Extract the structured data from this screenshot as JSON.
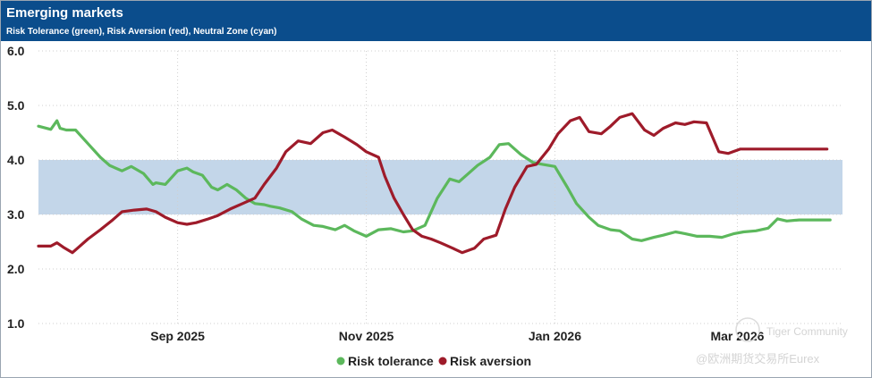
{
  "header": {
    "title": "Emerging markets",
    "subtitle": "Risk Tolerance (green), Risk Aversion (red), Neutral Zone (cyan)"
  },
  "watermark": {
    "line1": "Tiger Community",
    "line2": "@欧洲期货交易所Eurex"
  },
  "colors": {
    "header_bg": "#0b4d8c",
    "risk_tolerance": "#5cb85c",
    "risk_aversion": "#9e1b2a",
    "neutral_zone": "#c3d6e9",
    "grid": "#cfcfcf"
  },
  "chart_data": {
    "type": "line",
    "title": "Emerging markets",
    "subtitle": "Risk Tolerance (green), Risk Aversion (red), Neutral Zone (cyan)",
    "xlabel": "",
    "ylabel": "",
    "ylim": [
      1.0,
      6.0
    ],
    "yticks": [
      "6.0",
      "5.0",
      "4.0",
      "3.0",
      "2.0",
      "1.0"
    ],
    "ytick_values": [
      6,
      5,
      4,
      3,
      2,
      1
    ],
    "xticks": [
      "Sep 2025",
      "Nov 2025",
      "Jan 2026",
      "Mar 2026"
    ],
    "xtick_days": [
      45,
      106,
      167,
      226
    ],
    "xlim_days": [
      0,
      260
    ],
    "x_unit": "days since 2025-07-18",
    "neutral_zone": {
      "label": "Neutral Zone",
      "low": 3.0,
      "high": 4.0
    },
    "grid": true,
    "legend_position": "bottom-center",
    "series": [
      {
        "name": "Risk tolerance",
        "x": [
          0,
          4,
          6,
          7,
          9,
          12,
          16,
          20,
          23,
          27,
          30,
          34,
          37,
          38,
          41,
          45,
          48,
          50,
          53,
          56,
          58,
          61,
          64,
          67,
          70,
          73,
          75,
          78,
          82,
          85,
          89,
          92,
          96,
          99,
          102,
          106,
          110,
          114,
          118,
          121,
          125,
          129,
          133,
          136,
          140,
          142,
          146,
          149,
          152,
          156,
          160,
          163,
          167,
          171,
          174,
          178,
          181,
          185,
          188,
          192,
          195,
          199,
          202,
          206,
          209,
          213,
          217,
          221,
          225,
          228,
          232,
          236,
          239,
          242,
          246,
          250,
          253,
          256
        ],
        "values": [
          4.62,
          4.56,
          4.72,
          4.58,
          4.55,
          4.55,
          4.3,
          4.05,
          3.9,
          3.8,
          3.88,
          3.75,
          3.55,
          3.58,
          3.55,
          3.8,
          3.85,
          3.78,
          3.72,
          3.5,
          3.45,
          3.55,
          3.45,
          3.3,
          3.2,
          3.18,
          3.15,
          3.12,
          3.05,
          2.92,
          2.8,
          2.78,
          2.72,
          2.8,
          2.7,
          2.6,
          2.72,
          2.74,
          2.68,
          2.7,
          2.8,
          3.3,
          3.65,
          3.6,
          3.8,
          3.9,
          4.05,
          4.28,
          4.3,
          4.1,
          3.95,
          3.92,
          3.88,
          3.5,
          3.2,
          2.95,
          2.8,
          2.72,
          2.7,
          2.55,
          2.52,
          2.58,
          2.62,
          2.68,
          2.65,
          2.6,
          2.6,
          2.58,
          2.65,
          2.68,
          2.7,
          2.75,
          2.92,
          2.88,
          2.9,
          2.9,
          2.9,
          2.9
        ]
      },
      {
        "name": "Risk aversion",
        "x": [
          0,
          4,
          6,
          8,
          11,
          13,
          16,
          20,
          24,
          27,
          31,
          35,
          38,
          41,
          45,
          48,
          51,
          55,
          58,
          62,
          66,
          70,
          73,
          77,
          80,
          84,
          88,
          92,
          95,
          99,
          103,
          106,
          110,
          112,
          115,
          118,
          121,
          124,
          127,
          130,
          134,
          137,
          141,
          144,
          148,
          151,
          154,
          158,
          161,
          165,
          168,
          172,
          175,
          178,
          182,
          185,
          188,
          192,
          196,
          199,
          202,
          206,
          209,
          212,
          216,
          220,
          223,
          227,
          231,
          234,
          238,
          242,
          245,
          248,
          251,
          253,
          255
        ],
        "values": [
          2.42,
          2.42,
          2.48,
          2.4,
          2.3,
          2.4,
          2.55,
          2.72,
          2.9,
          3.05,
          3.08,
          3.1,
          3.05,
          2.95,
          2.85,
          2.82,
          2.85,
          2.92,
          2.98,
          3.1,
          3.2,
          3.3,
          3.55,
          3.85,
          4.15,
          4.35,
          4.3,
          4.5,
          4.55,
          4.42,
          4.28,
          4.15,
          4.05,
          3.7,
          3.3,
          3.0,
          2.72,
          2.6,
          2.55,
          2.48,
          2.38,
          2.3,
          2.38,
          2.55,
          2.62,
          3.1,
          3.5,
          3.88,
          3.92,
          4.2,
          4.48,
          4.72,
          4.78,
          4.52,
          4.48,
          4.62,
          4.78,
          4.85,
          4.55,
          4.45,
          4.58,
          4.68,
          4.65,
          4.7,
          4.68,
          4.15,
          4.12,
          4.2,
          4.2,
          4.2,
          4.2,
          4.2,
          4.2,
          4.2,
          4.2,
          4.2,
          4.2
        ]
      }
    ]
  }
}
